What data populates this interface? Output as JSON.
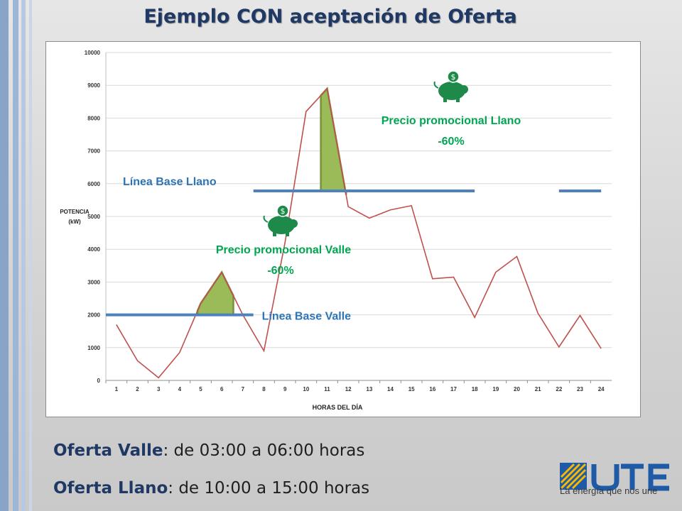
{
  "title": "Ejemplo CON aceptación de Oferta",
  "offers": {
    "valle_label": "Oferta Valle",
    "valle_text": ": de 03:00 a 06:00 horas",
    "llano_label": "Oferta Llano",
    "llano_text": ": de 10:00 a 15:00 horas"
  },
  "brand": {
    "slogan": "La energía que nos une",
    "logo_name": "UTE"
  },
  "colors": {
    "series": "#c0504d",
    "baseline": "#4f81bd",
    "highlight_fill": "#9bbb59",
    "highlight_stroke": "#76923c",
    "annotation_green": "#00a651",
    "annotation_blue": "#2e75b6",
    "title": "#1f3864"
  },
  "chart_data": {
    "type": "line",
    "title": "",
    "xlabel": "HORAS DEL DÍA",
    "ylabel": "POTENCIA (kW)",
    "ylim": [
      0,
      10000
    ],
    "yticks": [
      0,
      1000,
      2000,
      3000,
      4000,
      5000,
      6000,
      7000,
      8000,
      9000,
      10000
    ],
    "categories": [
      "1",
      "2",
      "3",
      "4",
      "5",
      "6",
      "7",
      "8",
      "9",
      "10",
      "11",
      "12",
      "13",
      "14",
      "15",
      "16",
      "17",
      "18",
      "19",
      "20",
      "21",
      "22",
      "23",
      "24"
    ],
    "series": [
      {
        "name": "",
        "values": [
          1700,
          600,
          80,
          850,
          2350,
          3300,
          2000,
          900,
          4200,
          8200,
          8900,
          5300,
          4950,
          5200,
          5330,
          3100,
          3150,
          1920,
          3300,
          3780,
          2050,
          1020,
          1980,
          970
        ]
      }
    ],
    "grid": true,
    "baselines": [
      {
        "name": "Línea Base Valle",
        "value": 2000,
        "segments": [
          [
            0.5,
            7.5
          ]
        ]
      },
      {
        "name": "Línea Base Llano",
        "value": 5780,
        "segments": [
          [
            7.5,
            18
          ],
          [
            22,
            24
          ]
        ]
      }
    ],
    "annotations": [
      {
        "text_line1": "Precio promocional Llano",
        "text_line2": "-60%",
        "icon": "piggy-bank-icon"
      },
      {
        "text_line1": "Precio promocional Valle",
        "text_line2": "-60%",
        "icon": "piggy-bank-icon"
      }
    ]
  }
}
